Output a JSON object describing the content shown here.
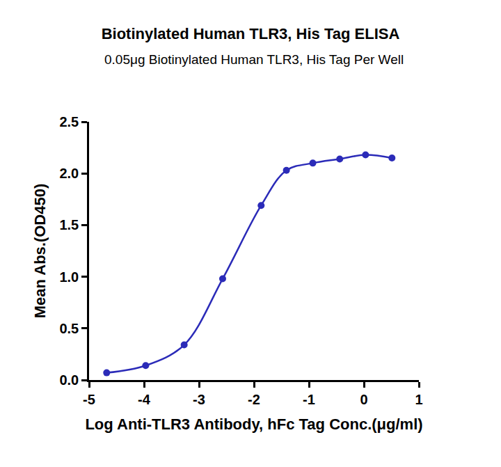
{
  "chart_data": {
    "type": "scatter",
    "title": "Biotinylated Human TLR3, His Tag ELISA",
    "subtitle": "0.05μg Biotinylated Human TLR3, His Tag Per Well",
    "x_label": "Log Anti-TLR3 Antibody, hFc Tag Conc.(μg/ml)",
    "y_label": "Mean Abs.(OD450)",
    "x": [
      -4.68,
      -3.97,
      -3.27,
      -2.57,
      -1.87,
      -1.41,
      -0.93,
      -0.44,
      0.03,
      0.51
    ],
    "values": [
      0.07,
      0.14,
      0.34,
      0.98,
      1.69,
      2.03,
      2.1,
      2.14,
      2.18,
      2.15
    ],
    "color": "#2b2bb8",
    "marker": "circle",
    "line_style": "solid",
    "xlim": [
      -5,
      1
    ],
    "xticks": [
      -5,
      -4,
      -3,
      -2,
      -1,
      0,
      1
    ],
    "ylim": [
      0,
      2.5
    ],
    "yticks": [
      {
        "value": 0,
        "label": "0.0"
      },
      0.5,
      {
        "value": 1,
        "label": "1.0"
      },
      1.5,
      {
        "value": 2,
        "label": "2.0"
      },
      2.5
    ],
    "grid": false
  }
}
